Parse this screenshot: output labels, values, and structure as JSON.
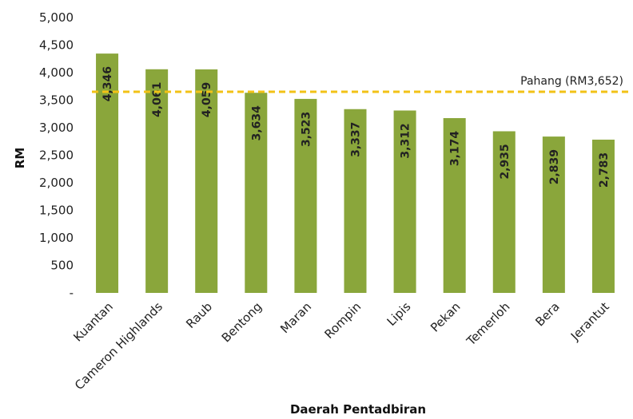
{
  "chart_data": {
    "type": "bar",
    "title": "",
    "xlabel": "Daerah Pentadbiran",
    "ylabel": "RM",
    "ylim": [
      0,
      5000
    ],
    "yticks": [
      0,
      500,
      1000,
      1500,
      2000,
      2500,
      3000,
      3500,
      4000,
      4500,
      5000
    ],
    "ytick_labels": [
      "-",
      "500",
      "1,000",
      "1,500",
      "2,000",
      "2,500",
      "3,000",
      "3,500",
      "4,000",
      "4,500",
      "5,000"
    ],
    "categories": [
      "Kuantan",
      "Cameron Highlands",
      "Raub",
      "Bentong",
      "Maran",
      "Rompin",
      "Lipis",
      "Pekan",
      "Temerloh",
      "Bera",
      "Jerantut"
    ],
    "values": [
      4346,
      4061,
      4059,
      3634,
      3523,
      3337,
      3312,
      3174,
      2935,
      2839,
      2783
    ],
    "value_labels": [
      "4,346",
      "4,061",
      "4,059",
      "3,634",
      "3,523",
      "3,337",
      "3,312",
      "3,174",
      "2,935",
      "2,839",
      "2,783"
    ],
    "bar_color": "#8aa63b",
    "reference_line": {
      "value": 3652,
      "label": "Pahang (RM3,652)",
      "color": "#f2c216",
      "style": "dashed"
    },
    "grid": false,
    "legend": "none"
  }
}
